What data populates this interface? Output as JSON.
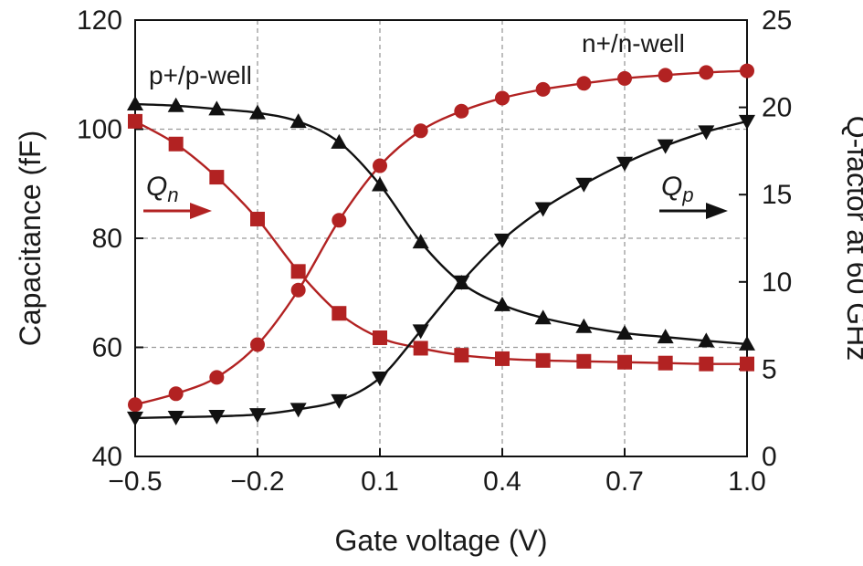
{
  "chart_data": {
    "type": "line",
    "title": "",
    "xlabel": "Gate voltage (V)",
    "ylabel_left": "Capacitance (fF)",
    "ylabel_right": "Q-factor at 60 GHz",
    "xlim": [
      -0.5,
      1.0
    ],
    "ylim_left": [
      40,
      120
    ],
    "ylim_right": [
      0,
      25
    ],
    "grid": true,
    "x_ticks": [
      "−0.5",
      "−0.2",
      "0.1",
      "0.4",
      "0.7",
      "1.0"
    ],
    "y_left_ticks": [
      "40",
      "60",
      "80",
      "100",
      "120"
    ],
    "y_right_ticks": [
      "0",
      "5",
      "10",
      "15",
      "20",
      "25"
    ],
    "x": [
      -0.5,
      -0.4,
      -0.3,
      -0.2,
      -0.1,
      0.0,
      0.1,
      0.2,
      0.3,
      0.4,
      0.5,
      0.6,
      0.7,
      0.8,
      0.9,
      1.0
    ],
    "series": [
      {
        "name": "n+/n-well capacitance",
        "axis": "left",
        "marker": "circle",
        "color": "#b22222",
        "values": [
          49.5,
          51.5,
          54.5,
          60.5,
          70.5,
          83.3,
          93.3,
          99.7,
          103.3,
          105.7,
          107.3,
          108.4,
          109.3,
          109.9,
          110.4,
          110.7
        ]
      },
      {
        "name": "p+/p-well capacitance",
        "axis": "left",
        "marker": "triangle-up",
        "color": "#111111",
        "values": [
          104.6,
          104.3,
          103.7,
          103.0,
          101.4,
          97.6,
          89.8,
          79.3,
          71.8,
          67.8,
          65.4,
          63.8,
          62.6,
          61.9,
          61.2,
          60.6
        ]
      },
      {
        "name": "Qn",
        "axis": "right",
        "marker": "square",
        "color": "#b22222",
        "values": [
          19.2,
          17.9,
          16.0,
          13.6,
          10.6,
          8.2,
          6.8,
          6.2,
          5.8,
          5.6,
          5.5,
          5.45,
          5.4,
          5.35,
          5.3,
          5.3
        ]
      },
      {
        "name": "Qp",
        "axis": "right",
        "marker": "triangle-down",
        "color": "#111111",
        "values": [
          2.2,
          2.25,
          2.3,
          2.4,
          2.7,
          3.2,
          4.5,
          7.2,
          10.0,
          12.4,
          14.2,
          15.6,
          16.8,
          17.8,
          18.6,
          19.2
        ]
      }
    ],
    "annotations": {
      "p_well_label": "p+/p-well",
      "n_well_label": "n+/n-well",
      "qn_main": "Q",
      "qn_sub": "n",
      "qp_main": "Q",
      "qp_sub": "p"
    }
  }
}
